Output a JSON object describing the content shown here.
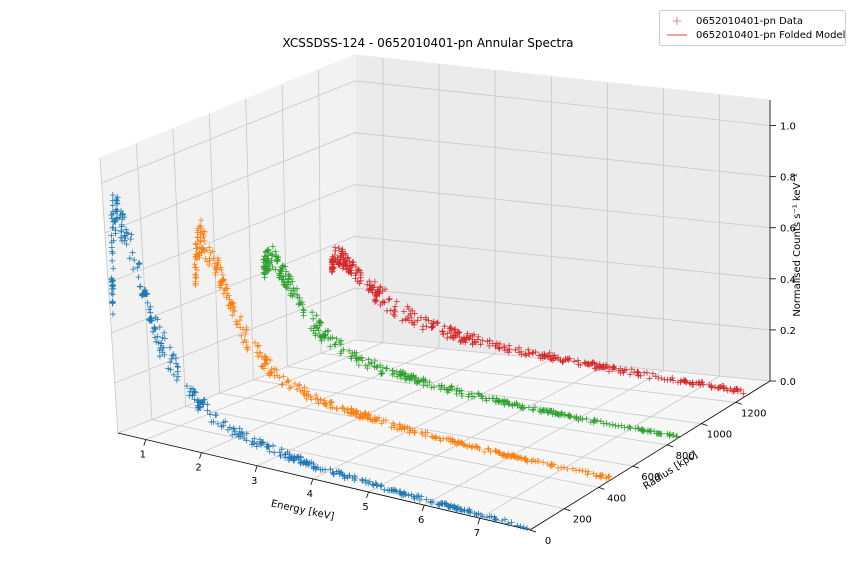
{
  "chart_data": {
    "type": "scatter",
    "title": "XCSSDSS-124 - 0652010401-pn Annular Spectra",
    "xlabel": "Energy [keV]",
    "ylabel": "Radius [kpc]",
    "zlabel": "Normalised Counts s⁻¹ keV⁻¹",
    "xlim": [
      0.5,
      7.9
    ],
    "ylim": [
      0,
      1400
    ],
    "zlim": [
      0,
      1.1
    ],
    "x_ticks": [
      "1",
      "2",
      "3",
      "4",
      "5",
      "6",
      "7"
    ],
    "y_ticks": [
      "0",
      "200",
      "400",
      "600",
      "800",
      "1000",
      "1200"
    ],
    "z_ticks": [
      "0.0",
      "0.2",
      "0.4",
      "0.6",
      "0.8",
      "1.0"
    ],
    "grid": true,
    "legend_position": "top-right",
    "legend": [
      {
        "label": "0652010401-pn Data",
        "marker": "+",
        "color": "#f08080"
      },
      {
        "label": "0652010401-pn Folded Model",
        "marker": "line",
        "color": "#f08080"
      }
    ],
    "series": [
      {
        "radius": 0,
        "color": "#1f77b4",
        "points": [
          [
            0.55,
            0.52
          ],
          [
            0.6,
            0.68
          ],
          [
            0.65,
            0.85
          ],
          [
            0.7,
            0.9
          ],
          [
            0.75,
            0.88
          ],
          [
            0.8,
            0.84
          ],
          [
            0.9,
            0.78
          ],
          [
            1.0,
            0.72
          ],
          [
            1.1,
            0.62
          ],
          [
            1.2,
            0.52
          ],
          [
            1.3,
            0.44
          ],
          [
            1.5,
            0.35
          ],
          [
            1.7,
            0.27
          ],
          [
            2.0,
            0.19
          ],
          [
            2.3,
            0.14
          ],
          [
            2.6,
            0.11
          ],
          [
            3.0,
            0.085
          ],
          [
            3.5,
            0.065
          ],
          [
            4.0,
            0.05
          ],
          [
            4.5,
            0.04
          ],
          [
            5.0,
            0.032
          ],
          [
            5.5,
            0.025
          ],
          [
            6.0,
            0.02
          ],
          [
            6.5,
            0.016
          ],
          [
            7.0,
            0.012
          ],
          [
            7.5,
            0.009
          ],
          [
            7.9,
            0.006
          ]
        ]
      },
      {
        "radius": 470,
        "color": "#ff7f0e",
        "points": [
          [
            0.55,
            0.5
          ],
          [
            0.6,
            0.6
          ],
          [
            0.65,
            0.64
          ],
          [
            0.7,
            0.66
          ],
          [
            0.75,
            0.63
          ],
          [
            0.8,
            0.6
          ],
          [
            0.9,
            0.56
          ],
          [
            1.0,
            0.52
          ],
          [
            1.1,
            0.45
          ],
          [
            1.2,
            0.39
          ],
          [
            1.3,
            0.34
          ],
          [
            1.5,
            0.27
          ],
          [
            1.7,
            0.21
          ],
          [
            2.0,
            0.16
          ],
          [
            2.3,
            0.12
          ],
          [
            2.6,
            0.1
          ],
          [
            3.0,
            0.08
          ],
          [
            3.5,
            0.065
          ],
          [
            4.0,
            0.05
          ],
          [
            4.5,
            0.04
          ],
          [
            5.0,
            0.032
          ],
          [
            5.5,
            0.025
          ],
          [
            6.0,
            0.02
          ],
          [
            6.5,
            0.015
          ],
          [
            7.0,
            0.011
          ],
          [
            7.5,
            0.008
          ],
          [
            7.9,
            0.006
          ]
        ]
      },
      {
        "radius": 860,
        "color": "#2ca02c",
        "points": [
          [
            0.55,
            0.42
          ],
          [
            0.6,
            0.45
          ],
          [
            0.65,
            0.46
          ],
          [
            0.7,
            0.47
          ],
          [
            0.75,
            0.46
          ],
          [
            0.8,
            0.44
          ],
          [
            0.9,
            0.41
          ],
          [
            1.0,
            0.38
          ],
          [
            1.1,
            0.34
          ],
          [
            1.2,
            0.3
          ],
          [
            1.3,
            0.27
          ],
          [
            1.5,
            0.22
          ],
          [
            1.7,
            0.18
          ],
          [
            2.0,
            0.14
          ],
          [
            2.3,
            0.11
          ],
          [
            2.6,
            0.095
          ],
          [
            3.0,
            0.08
          ],
          [
            3.5,
            0.065
          ],
          [
            4.0,
            0.052
          ],
          [
            4.5,
            0.042
          ],
          [
            5.0,
            0.035
          ],
          [
            5.5,
            0.028
          ],
          [
            6.0,
            0.022
          ],
          [
            6.5,
            0.017
          ],
          [
            7.0,
            0.013
          ],
          [
            7.5,
            0.01
          ],
          [
            7.9,
            0.008
          ]
        ]
      },
      {
        "radius": 1250,
        "color": "#d62728",
        "points": [
          [
            0.55,
            0.32
          ],
          [
            0.6,
            0.36
          ],
          [
            0.65,
            0.37
          ],
          [
            0.7,
            0.37
          ],
          [
            0.75,
            0.36
          ],
          [
            0.8,
            0.35
          ],
          [
            0.9,
            0.33
          ],
          [
            1.0,
            0.31
          ],
          [
            1.1,
            0.29
          ],
          [
            1.2,
            0.27
          ],
          [
            1.3,
            0.25
          ],
          [
            1.5,
            0.22
          ],
          [
            1.7,
            0.19
          ],
          [
            2.0,
            0.16
          ],
          [
            2.3,
            0.14
          ],
          [
            2.6,
            0.12
          ],
          [
            3.0,
            0.105
          ],
          [
            3.5,
            0.09
          ],
          [
            4.0,
            0.078
          ],
          [
            4.5,
            0.068
          ],
          [
            5.0,
            0.06
          ],
          [
            5.5,
            0.052
          ],
          [
            6.0,
            0.045
          ],
          [
            6.5,
            0.038
          ],
          [
            7.0,
            0.032
          ],
          [
            7.5,
            0.026
          ],
          [
            7.9,
            0.02
          ]
        ]
      }
    ]
  }
}
